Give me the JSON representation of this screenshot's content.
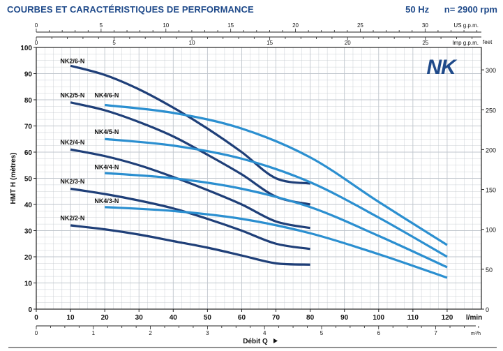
{
  "header": {
    "title": "COURBES ET CARACTÉRISTIQUES DE PERFORMANCE",
    "frequency": "50 Hz",
    "speed": "n= 2900 rpm"
  },
  "brand": {
    "logo_text": "NK",
    "color": "#1f4a8a"
  },
  "colors": {
    "dark_series": "#1f3f78",
    "light_series": "#2b8fd0",
    "grid": "#bfc5cc",
    "frame": "#222222"
  },
  "chart_data": {
    "type": "line",
    "title": "COURBES ET CARACTÉRISTIQUES DE PERFORMANCE",
    "xlabel": "Débit Q",
    "ylabel": "HMT H (mètres)",
    "xlim": [
      0,
      130
    ],
    "ylim": [
      0,
      100
    ],
    "grid": true,
    "x_ticks": [
      0,
      10,
      20,
      30,
      40,
      50,
      60,
      70,
      80,
      90,
      100,
      110,
      120
    ],
    "x_unit": "l/min",
    "y_ticks": [
      0,
      10,
      20,
      30,
      40,
      50,
      60,
      70,
      80,
      90,
      100
    ],
    "secondary_axes": {
      "us_gpm": {
        "label": "US g.p.m.",
        "ticks": [
          0,
          5,
          10,
          15,
          20,
          25,
          30
        ]
      },
      "imp_gpm": {
        "label": "Imp g.p.m.",
        "ticks": [
          0,
          5,
          10,
          15,
          20,
          25
        ]
      },
      "m3h": {
        "label": "m³/h",
        "ticks": [
          0,
          1,
          2,
          3,
          4,
          5,
          6,
          7
        ]
      },
      "feet": {
        "label": "feet",
        "ticks": [
          0,
          50,
          100,
          150,
          200,
          250,
          300
        ]
      }
    },
    "series": [
      {
        "name": "NK2/6-N",
        "group": "NK2",
        "label_pos": [
          7,
          94
        ],
        "x": [
          10,
          20,
          30,
          40,
          50,
          60,
          70,
          80
        ],
        "y": [
          93,
          89.5,
          84,
          77,
          69,
          60,
          50,
          48
        ]
      },
      {
        "name": "NK2/5-N",
        "group": "NK2",
        "label_pos": [
          7,
          81
        ],
        "x": [
          10,
          20,
          30,
          40,
          50,
          60,
          70,
          80
        ],
        "y": [
          79,
          76,
          71.5,
          66,
          59,
          51.5,
          43,
          40
        ]
      },
      {
        "name": "NK2/4-N",
        "group": "NK2",
        "label_pos": [
          7,
          63
        ],
        "x": [
          10,
          20,
          30,
          40,
          50,
          60,
          70,
          80
        ],
        "y": [
          61,
          58.5,
          55,
          50.5,
          45.5,
          40,
          33.5,
          31
        ]
      },
      {
        "name": "NK2/3-N",
        "group": "NK2",
        "label_pos": [
          7,
          48
        ],
        "x": [
          10,
          20,
          30,
          40,
          50,
          60,
          70,
          80
        ],
        "y": [
          46,
          44,
          41.5,
          38.5,
          34.5,
          30,
          25,
          23
        ]
      },
      {
        "name": "NK2/2-N",
        "group": "NK2",
        "label_pos": [
          7,
          34
        ],
        "x": [
          10,
          20,
          30,
          40,
          50,
          60,
          70,
          80
        ],
        "y": [
          32,
          30.5,
          28.5,
          26,
          23.5,
          20.5,
          17.5,
          17
        ]
      },
      {
        "name": "NK4/6-N",
        "group": "NK4",
        "label_pos": [
          17,
          81
        ],
        "x": [
          20,
          40,
          60,
          80,
          100,
          120
        ],
        "y": [
          78,
          75,
          69,
          58,
          41,
          24.5
        ]
      },
      {
        "name": "NK4/5-N",
        "group": "NK4",
        "label_pos": [
          17,
          67
        ],
        "x": [
          20,
          40,
          60,
          80,
          100,
          120
        ],
        "y": [
          65,
          62.5,
          57.5,
          48.5,
          35,
          20
        ]
      },
      {
        "name": "NK4/4-N",
        "group": "NK4",
        "label_pos": [
          17,
          53.5
        ],
        "x": [
          20,
          40,
          60,
          80,
          100,
          120
        ],
        "y": [
          52,
          50,
          46,
          39,
          28,
          16
        ]
      },
      {
        "name": "NK4/3-N",
        "group": "NK4",
        "label_pos": [
          17,
          40.5
        ],
        "x": [
          20,
          40,
          60,
          80,
          100,
          120
        ],
        "y": [
          39,
          37.5,
          34.5,
          29,
          21,
          12
        ]
      }
    ]
  }
}
